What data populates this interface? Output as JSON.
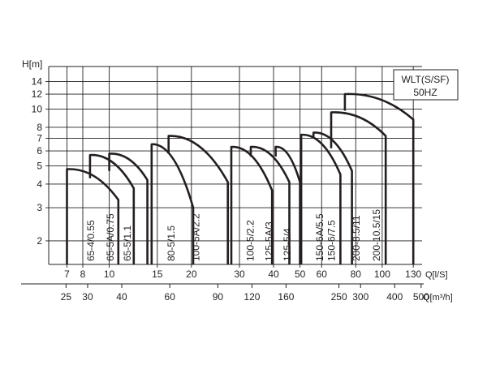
{
  "chart_data": {
    "type": "line",
    "title": "",
    "legend": [
      "WLT(S/SF)",
      "50HZ"
    ],
    "legend_position": "top-right",
    "ylabel": "H[m]",
    "xlabel": "Q[l/S]",
    "x2label": "Q[m³/h]",
    "yscale": "log",
    "xscale": "log",
    "ylim": [
      1.5,
      16
    ],
    "xlim": [
      6,
      140
    ],
    "grid": true,
    "y_ticks": [
      "2",
      "3",
      "4",
      "5",
      "6",
      "7",
      "8",
      "10",
      "12",
      "14"
    ],
    "y_tick_values": [
      2,
      3,
      4,
      5,
      6,
      7,
      8,
      10,
      12,
      14
    ],
    "x_ticks": [
      "7",
      "8",
      "10",
      "15",
      "20",
      "30",
      "40",
      "50",
      "60",
      "80",
      "100",
      "130"
    ],
    "x_tick_values": [
      7,
      8,
      10,
      15,
      20,
      30,
      40,
      50,
      60,
      80,
      100,
      130
    ],
    "x2_ticks": [
      "25",
      "30",
      "40",
      "60",
      "90",
      "120",
      "160",
      "250",
      "300",
      "400",
      "500"
    ],
    "x2_tick_values": [
      25,
      30,
      40,
      60,
      90,
      120,
      160,
      250,
      300,
      400,
      500
    ],
    "series": [
      {
        "name": "65-4/0.55",
        "x": [
          7,
          7,
          10.8,
          10.8
        ],
        "y": [
          1.5,
          4.8,
          3.3,
          1.5
        ]
      },
      {
        "name": "65-5A/0.75",
        "x": [
          8.5,
          8.5,
          12.3,
          12.3
        ],
        "y": [
          4.3,
          5.7,
          3.8,
          1.5
        ]
      },
      {
        "name": "65-5/1.1",
        "x": [
          10,
          10,
          13.8,
          13.8
        ],
        "y": [
          4.7,
          5.8,
          4.2,
          1.5
        ]
      },
      {
        "name": "80-5/1.5",
        "x": [
          14.3,
          14.3,
          20.3,
          20.3
        ],
        "y": [
          1.5,
          6.5,
          3,
          1.5
        ]
      },
      {
        "name": "100-5A/2.2",
        "x": [
          16.5,
          16.5,
          27.2,
          27.2
        ],
        "y": [
          5.8,
          7.2,
          4.1,
          1.5
        ]
      },
      {
        "name": "100-5/2.2",
        "x": [
          28,
          28,
          39.5,
          39.5
        ],
        "y": [
          1.5,
          6.3,
          3.7,
          1.5
        ]
      },
      {
        "name": "125-5A/3",
        "x": [
          33,
          33,
          45.7,
          45.7
        ],
        "y": [
          5.6,
          6.3,
          4.1,
          1.5
        ]
      },
      {
        "name": "125-5/4",
        "x": [
          40.7,
          40.7,
          50,
          50
        ],
        "y": [
          5.6,
          6.3,
          4.1,
          1.5
        ]
      },
      {
        "name": "150-6A/5.5",
        "x": [
          50.5,
          50.5,
          70.3,
          70.3
        ],
        "y": [
          1.5,
          7.3,
          4.5,
          1.5
        ]
      },
      {
        "name": "150-6/7.5",
        "x": [
          56,
          56,
          77.5,
          77.5
        ],
        "y": [
          7,
          7.5,
          4.7,
          1.5
        ]
      },
      {
        "name": "200-8.5/11",
        "x": [
          65,
          65,
          103,
          103
        ],
        "y": [
          6.2,
          9.6,
          7.2,
          1.5
        ]
      },
      {
        "name": "200-10.5/15",
        "x": [
          73,
          73,
          130,
          130
        ],
        "y": [
          9.8,
          12,
          8.8,
          1.5
        ]
      }
    ]
  }
}
